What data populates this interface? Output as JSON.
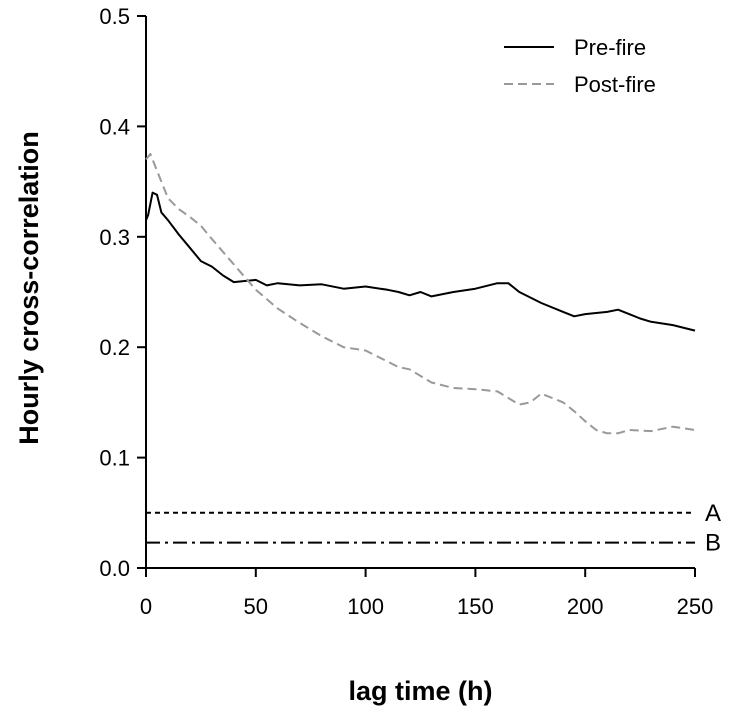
{
  "chart_data": {
    "type": "line",
    "title": "",
    "xlabel": "lag time (h)",
    "ylabel": "Hourly cross-correlation",
    "xlim": [
      0,
      250
    ],
    "ylim": [
      0,
      0.5
    ],
    "x_ticks": [
      "0",
      "50",
      "100",
      "150",
      "200",
      "250"
    ],
    "y_ticks": [
      "0.0",
      "0.1",
      "0.2",
      "0.3",
      "0.4",
      "0.5"
    ],
    "grid": false,
    "legend_position": "top-right",
    "series": [
      {
        "name": "Pre-fire",
        "color": "#000000",
        "style": "solid",
        "x": [
          0,
          1,
          3,
          5,
          7,
          10,
          15,
          20,
          25,
          30,
          35,
          40,
          45,
          50,
          55,
          60,
          70,
          80,
          90,
          100,
          110,
          115,
          120,
          125,
          130,
          140,
          150,
          160,
          165,
          170,
          180,
          190,
          195,
          200,
          205,
          210,
          215,
          220,
          225,
          230,
          240,
          250
        ],
        "y": [
          0.315,
          0.32,
          0.34,
          0.338,
          0.322,
          0.315,
          0.302,
          0.29,
          0.278,
          0.273,
          0.265,
          0.259,
          0.26,
          0.261,
          0.256,
          0.258,
          0.256,
          0.257,
          0.253,
          0.255,
          0.252,
          0.25,
          0.247,
          0.25,
          0.246,
          0.25,
          0.253,
          0.258,
          0.258,
          0.25,
          0.24,
          0.232,
          0.228,
          0.23,
          0.231,
          0.232,
          0.234,
          0.23,
          0.226,
          0.223,
          0.22,
          0.215
        ]
      },
      {
        "name": "Post-fire",
        "color": "#999999",
        "style": "dashed",
        "x": [
          0,
          2,
          5,
          10,
          15,
          20,
          25,
          30,
          40,
          50,
          60,
          70,
          80,
          90,
          100,
          110,
          115,
          120,
          130,
          140,
          150,
          160,
          170,
          175,
          180,
          190,
          195,
          200,
          205,
          210,
          215,
          220,
          230,
          240,
          250
        ],
        "y": [
          0.37,
          0.375,
          0.36,
          0.335,
          0.325,
          0.318,
          0.31,
          0.298,
          0.275,
          0.252,
          0.235,
          0.222,
          0.21,
          0.2,
          0.197,
          0.187,
          0.182,
          0.18,
          0.168,
          0.163,
          0.162,
          0.16,
          0.148,
          0.15,
          0.158,
          0.15,
          0.142,
          0.133,
          0.125,
          0.122,
          0.122,
          0.125,
          0.124,
          0.128,
          0.125
        ]
      }
    ],
    "reference_lines": [
      {
        "label": "A",
        "y": 0.05,
        "style": "dotted"
      },
      {
        "label": "B",
        "y": 0.023,
        "style": "dashdot"
      }
    ]
  }
}
